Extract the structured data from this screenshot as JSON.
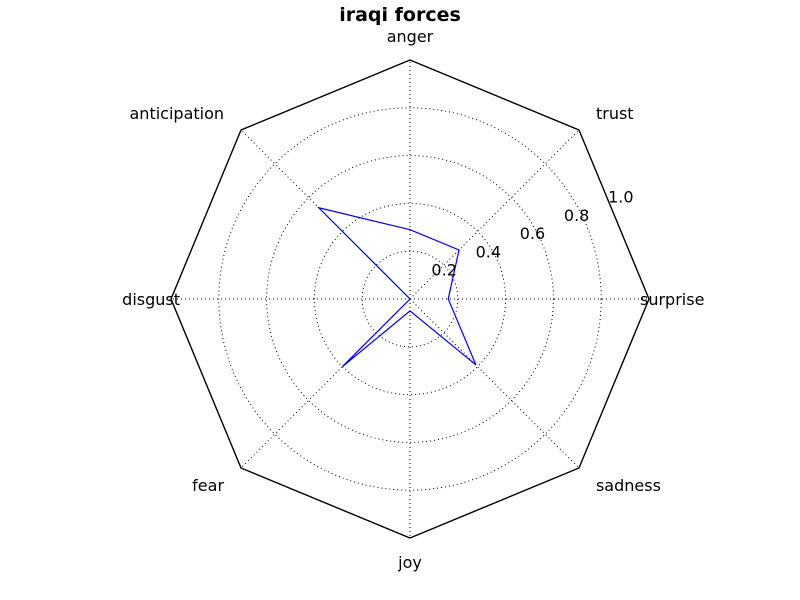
{
  "chart_data": {
    "type": "radar",
    "title": "iraqi forces",
    "categories": [
      "anger",
      "trust",
      "surprise",
      "sadness",
      "joy",
      "fear",
      "disgust",
      "anticipation"
    ],
    "series": [
      {
        "values": [
          0.29,
          0.29,
          0.16,
          0.39,
          0.05,
          0.4,
          0.0,
          0.54
        ],
        "color": "#0000ff"
      }
    ],
    "rlim": [
      0,
      1.0
    ],
    "rticks": [
      0.2,
      0.4,
      0.6,
      0.8,
      1.0
    ],
    "rtick_labels": [
      "0.2",
      "0.4",
      "0.6",
      "0.8",
      "1.0"
    ],
    "grid": true
  }
}
